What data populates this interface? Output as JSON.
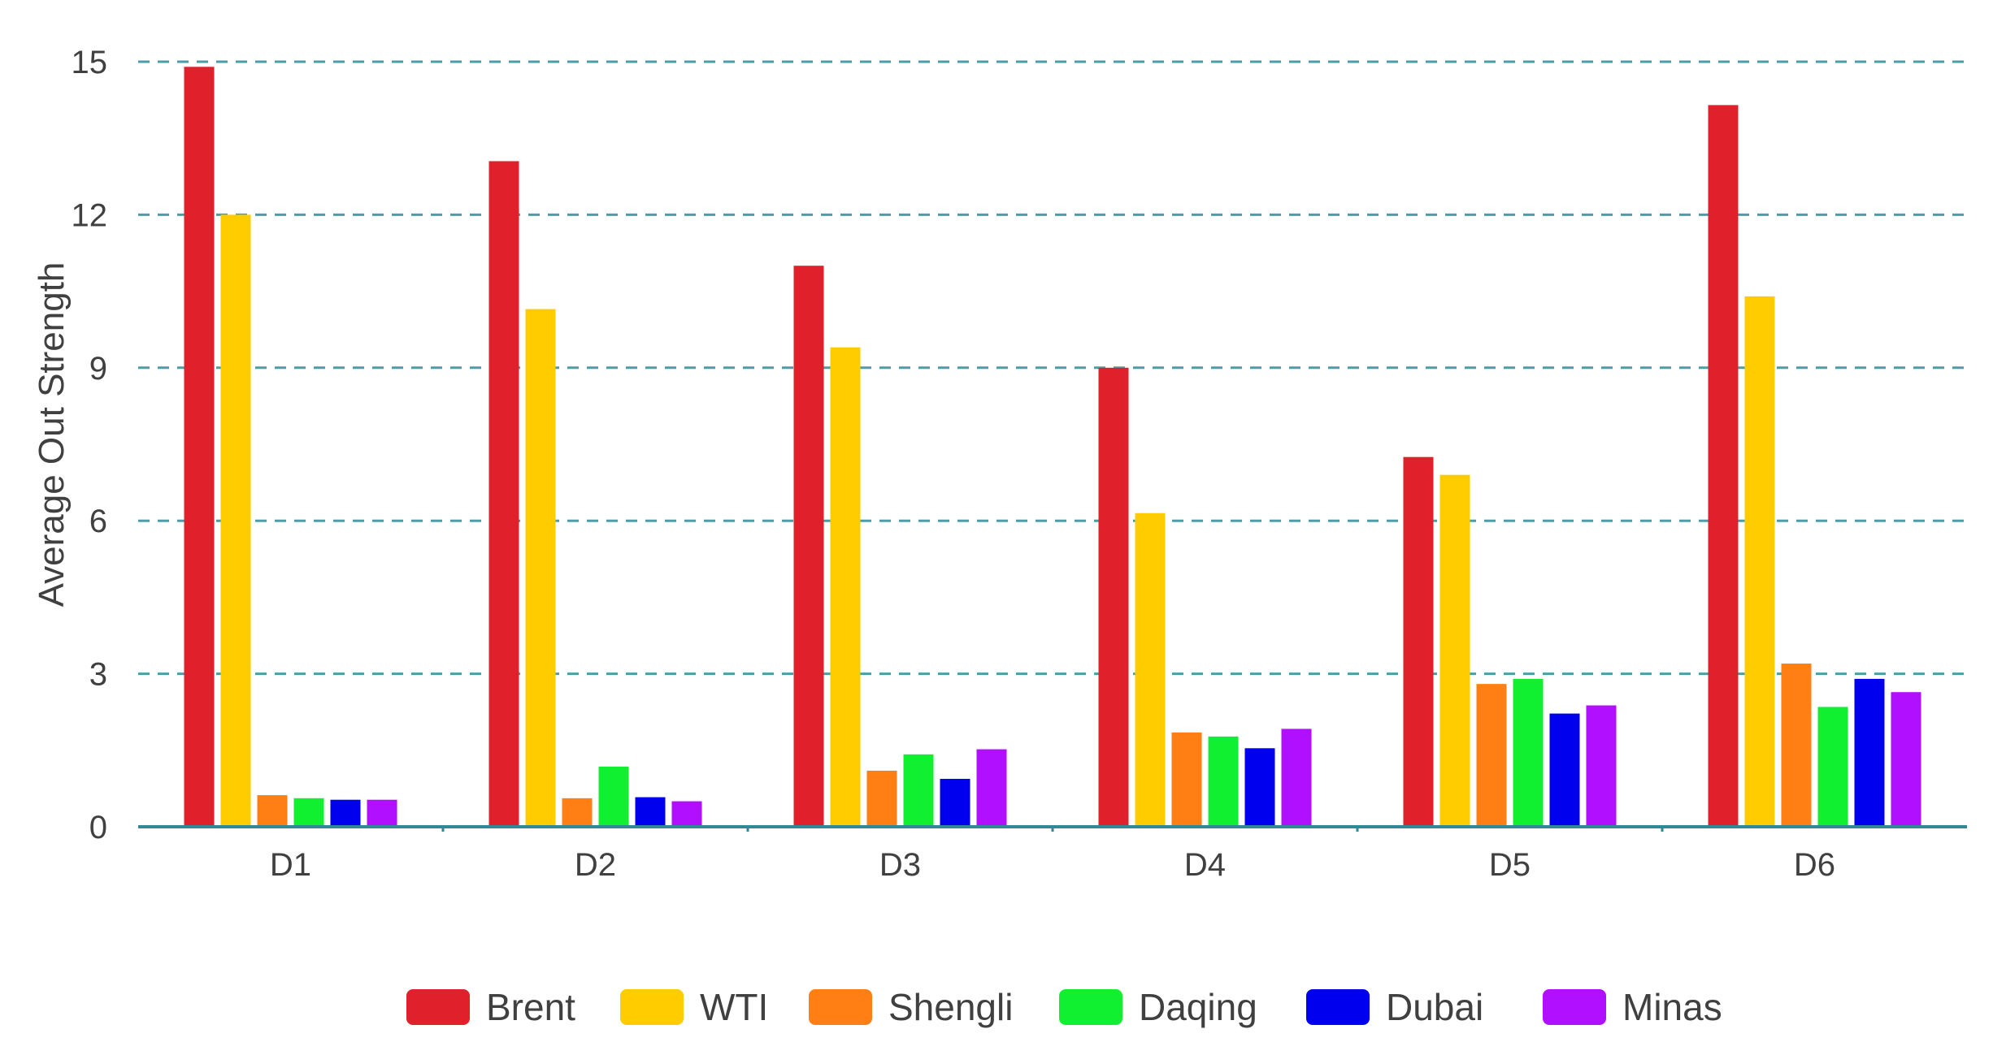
{
  "chart_data": {
    "type": "bar",
    "title": "",
    "xlabel": "",
    "ylabel": "Average Out Strength",
    "ylim": [
      0,
      15
    ],
    "yticks": [
      0,
      3,
      6,
      9,
      12,
      15
    ],
    "grid": true,
    "legend_position": "bottom",
    "categories": [
      "D1",
      "D2",
      "D3",
      "D4",
      "D5",
      "D6"
    ],
    "series": [
      {
        "name": "Brent",
        "color": "#e0202a",
        "values": [
          14.9,
          13.05,
          11.0,
          9.0,
          7.25,
          14.15
        ]
      },
      {
        "name": "WTI",
        "color": "#ffcc00",
        "values": [
          12.0,
          10.15,
          9.4,
          6.15,
          6.9,
          10.4
        ]
      },
      {
        "name": "Shengli",
        "color": "#ff7f14",
        "values": [
          0.62,
          0.56,
          1.1,
          1.85,
          2.8,
          3.2
        ]
      },
      {
        "name": "Daqing",
        "color": "#10f030",
        "values": [
          0.56,
          1.18,
          1.42,
          1.77,
          2.9,
          2.35
        ]
      },
      {
        "name": "Dubai",
        "color": "#0000ee",
        "values": [
          0.53,
          0.58,
          0.94,
          1.54,
          2.22,
          2.9
        ]
      },
      {
        "name": "Minas",
        "color": "#b010ff",
        "values": [
          0.53,
          0.5,
          1.52,
          1.92,
          2.38,
          2.64
        ]
      }
    ]
  }
}
